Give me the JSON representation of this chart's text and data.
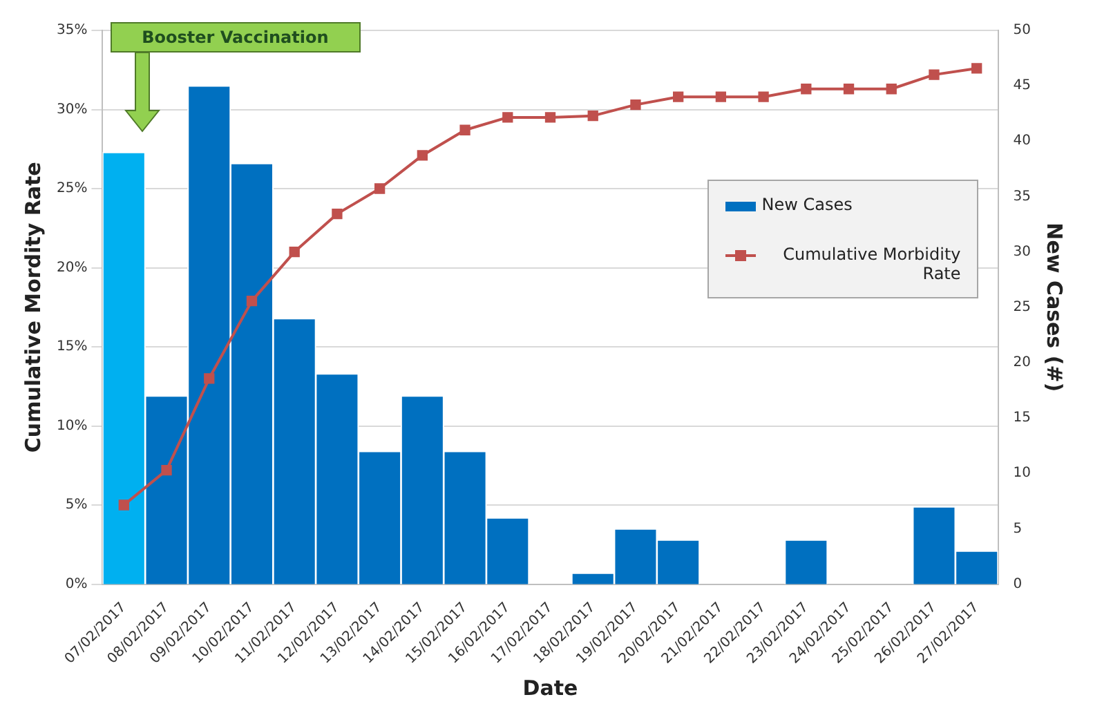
{
  "chart_data": {
    "type": "bar",
    "xlabel": "Date",
    "ylabel": "Cumulative Mordity Rate",
    "y2label": "New Cases (#)",
    "categories": [
      "07/02/2017",
      "08/02/2017",
      "09/02/2017",
      "10/02/2017",
      "11/02/2017",
      "12/02/2017",
      "13/02/2017",
      "14/02/2017",
      "15/02/2017",
      "16/02/2017",
      "17/02/2017",
      "18/02/2017",
      "19/02/2017",
      "20/02/2017",
      "21/02/2017",
      "22/02/2017",
      "23/02/2017",
      "24/02/2017",
      "25/02/2017",
      "26/02/2017",
      "27/02/2017"
    ],
    "series": [
      {
        "name": "New Cases",
        "axis": "y2",
        "color": "#0070c0",
        "colors": [
          "#00b0f0",
          "#0070c0",
          "#0070c0",
          "#0070c0",
          "#0070c0",
          "#0070c0",
          "#0070c0",
          "#0070c0",
          "#0070c0",
          "#0070c0",
          "#0070c0",
          "#0070c0",
          "#0070c0",
          "#0070c0",
          "#0070c0",
          "#0070c0",
          "#0070c0",
          "#0070c0",
          "#0070c0",
          "#0070c0",
          "#0070c0"
        ],
        "values": [
          39,
          17,
          45,
          38,
          24,
          19,
          12,
          17,
          12,
          6,
          0,
          1,
          5,
          4,
          0,
          0,
          4,
          0,
          0,
          7,
          3
        ]
      },
      {
        "name": "Cumulative Morbidity Rate",
        "type": "line",
        "axis": "y",
        "color": "#c0504d",
        "marker": "square",
        "values": [
          5.0,
          7.2,
          13.0,
          17.9,
          21.0,
          23.4,
          25.0,
          27.1,
          28.7,
          29.5,
          29.5,
          29.6,
          30.3,
          30.8,
          30.8,
          30.8,
          31.3,
          31.3,
          31.3,
          32.2,
          32.6
        ]
      }
    ],
    "ylim": [
      0,
      35
    ],
    "yticks": [
      {
        "value": 0,
        "label": "0%"
      },
      {
        "value": 5,
        "label": "5%"
      },
      {
        "value": 10,
        "label": "10%"
      },
      {
        "value": 15,
        "label": "15%"
      },
      {
        "value": 20,
        "label": "20%"
      },
      {
        "value": 25,
        "label": "25%"
      },
      {
        "value": 30,
        "label": "30%"
      },
      {
        "value": 35,
        "label": "35%"
      }
    ],
    "y2lim": [
      0,
      50
    ],
    "y2ticks": [
      0,
      5,
      10,
      15,
      20,
      25,
      30,
      35,
      40,
      45,
      50
    ],
    "grid": "y",
    "legend": "right",
    "annotations": [
      "Booster Vaccination"
    ]
  }
}
